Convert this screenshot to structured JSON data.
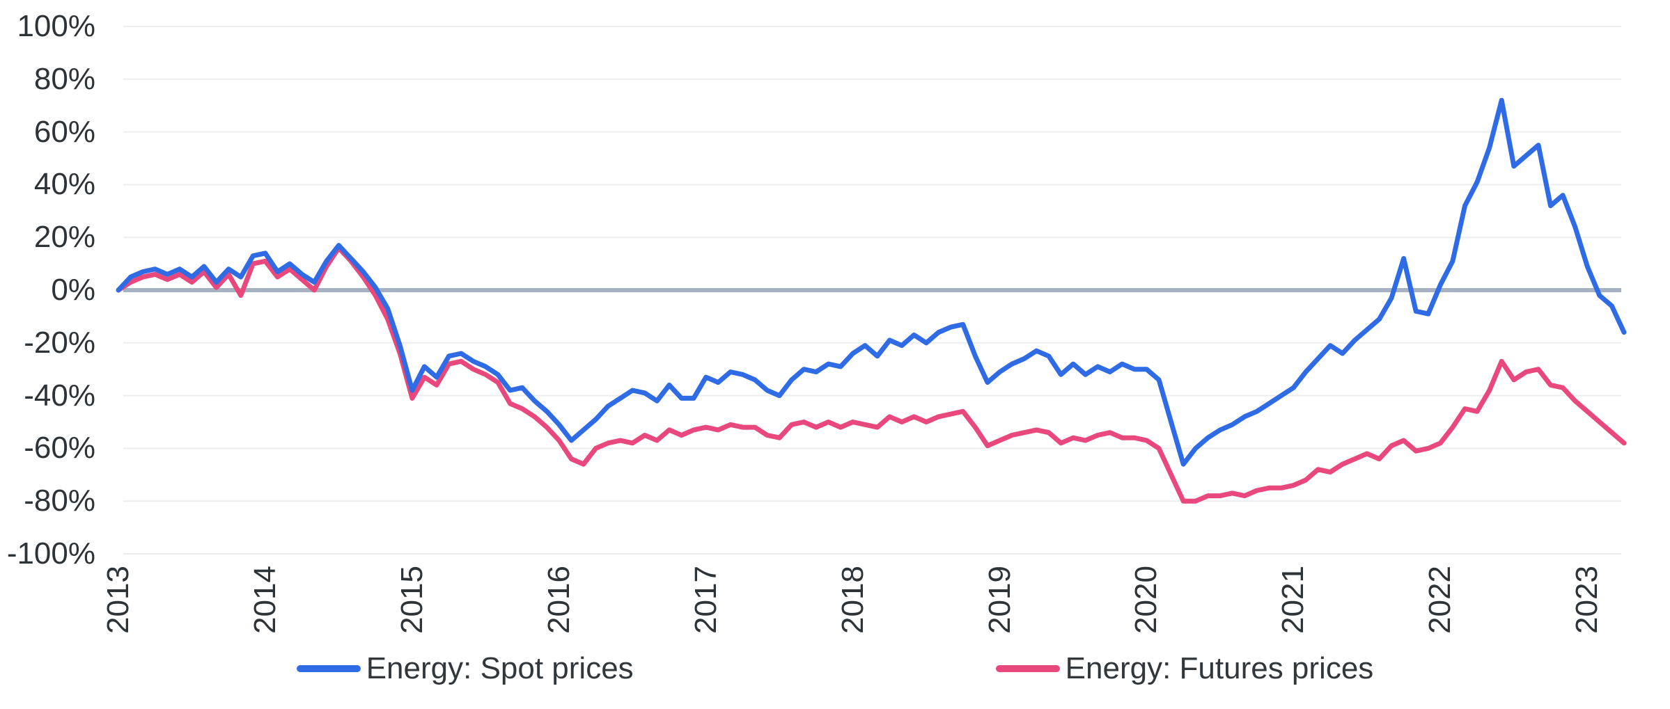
{
  "chart_data": {
    "type": "line",
    "title": "",
    "x_axis": {
      "tick_labels": [
        "2013",
        "2014",
        "2015",
        "2016",
        "2017",
        "2018",
        "2019",
        "2020",
        "2021",
        "2022",
        "2023"
      ],
      "start": "2013-01",
      "end": "2023-04",
      "frequency": "monthly",
      "label_rotation_deg": -90
    },
    "y_axis": {
      "tick_labels": [
        "100%",
        "80%",
        "60%",
        "40%",
        "20%",
        "0%",
        "-20%",
        "-40%",
        "-60%",
        "-80%",
        "-100%"
      ],
      "tick_values": [
        100,
        80,
        60,
        40,
        20,
        0,
        -20,
        -40,
        -60,
        -80,
        -100
      ],
      "min": -100,
      "max": 100,
      "unit": "%"
    },
    "grid": true,
    "zero_line": true,
    "legend_position": "bottom-center",
    "colors": {
      "grid": "#ededed",
      "zero_line": "#a6b2c1",
      "axis_text": "#2e3338",
      "background": "#ffffff"
    },
    "series": [
      {
        "name": "Energy: Spot prices",
        "color": "#2f6be4",
        "values": [
          0,
          5,
          7,
          8,
          6,
          8,
          5,
          9,
          3,
          8,
          5,
          13,
          14,
          7,
          10,
          6,
          3,
          11,
          17,
          12,
          7,
          1,
          -7,
          -21,
          -38,
          -29,
          -33,
          -25,
          -24,
          -27,
          -29,
          -32,
          -38,
          -37,
          -42,
          -46,
          -51,
          -57,
          -53,
          -49,
          -44,
          -41,
          -38,
          -39,
          -42,
          -36,
          -41,
          -41,
          -33,
          -35,
          -31,
          -32,
          -34,
          -38,
          -40,
          -34,
          -30,
          -31,
          -28,
          -29,
          -24,
          -21,
          -25,
          -19,
          -21,
          -17,
          -20,
          -16,
          -14,
          -13,
          -25,
          -35,
          -31,
          -28,
          -26,
          -23,
          -25,
          -32,
          -28,
          -32,
          -29,
          -31,
          -28,
          -30,
          -30,
          -34,
          -50,
          -66,
          -60,
          -56,
          -53,
          -51,
          -48,
          -46,
          -43,
          -40,
          -37,
          -31,
          -26,
          -21,
          -24,
          -19,
          -15,
          -11,
          -3,
          12,
          -8,
          -9,
          2,
          11,
          32,
          41,
          54,
          72,
          47,
          51,
          55,
          32,
          36,
          24,
          9,
          -2,
          -6,
          -16
        ]
      },
      {
        "name": "Energy: Futures prices",
        "color": "#e8487b",
        "values": [
          0,
          3,
          5,
          6,
          4,
          6,
          3,
          7,
          1,
          6,
          -2,
          10,
          11,
          5,
          8,
          4,
          0,
          9,
          16,
          11,
          5,
          -2,
          -11,
          -24,
          -41,
          -33,
          -36,
          -28,
          -27,
          -30,
          -32,
          -35,
          -43,
          -45,
          -48,
          -52,
          -57,
          -64,
          -66,
          -60,
          -58,
          -57,
          -58,
          -55,
          -57,
          -53,
          -55,
          -53,
          -52,
          -53,
          -51,
          -52,
          -52,
          -55,
          -56,
          -51,
          -50,
          -52,
          -50,
          -52,
          -50,
          -51,
          -52,
          -48,
          -50,
          -48,
          -50,
          -48,
          -47,
          -46,
          -52,
          -59,
          -57,
          -55,
          -54,
          -53,
          -54,
          -58,
          -56,
          -57,
          -55,
          -54,
          -56,
          -56,
          -57,
          -60,
          -70,
          -80,
          -80,
          -78,
          -78,
          -77,
          -78,
          -76,
          -75,
          -75,
          -74,
          -72,
          -68,
          -69,
          -66,
          -64,
          -62,
          -64,
          -59,
          -57,
          -61,
          -60,
          -58,
          -52,
          -45,
          -46,
          -38,
          -27,
          -34,
          -31,
          -30,
          -36,
          -37,
          -42,
          -46,
          -50,
          -54,
          -58
        ]
      }
    ]
  },
  "legend": {
    "items": [
      {
        "label": "Energy: Spot prices",
        "color": "#2f6be4"
      },
      {
        "label": "Energy: Futures prices",
        "color": "#e8487b"
      }
    ]
  }
}
